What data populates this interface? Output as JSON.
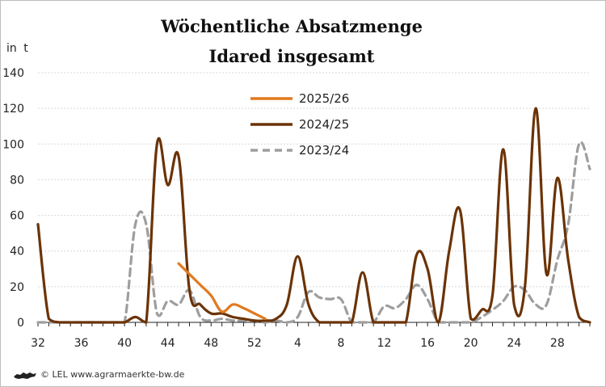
{
  "chart_data": {
    "type": "line",
    "title": "Wöchentliche Absatzmenge",
    "subtitle": "Idared insgesamt",
    "ylabel": "in  t",
    "xlabel": "",
    "ylim": [
      0,
      140
    ],
    "yticks": [
      0,
      20,
      40,
      60,
      80,
      100,
      120,
      140
    ],
    "grid": "horizontal dashed",
    "legend_position": "top-center",
    "x_weeks": [
      "32",
      "33",
      "34",
      "35",
      "36",
      "37",
      "38",
      "39",
      "40",
      "41",
      "42",
      "43",
      "44",
      "45",
      "46",
      "47",
      "48",
      "49",
      "50",
      "51",
      "52",
      "1",
      "2",
      "3",
      "4",
      "5",
      "6",
      "7",
      "8",
      "9",
      "10",
      "11",
      "12",
      "13",
      "14",
      "15",
      "16",
      "17",
      "18",
      "19",
      "20",
      "21",
      "22",
      "23",
      "24",
      "25",
      "26",
      "27",
      "28",
      "29",
      "30",
      "31"
    ],
    "xtick_labels": [
      "32",
      "36",
      "40",
      "44",
      "48",
      "52",
      "4",
      "8",
      "12",
      "16",
      "20",
      "24",
      "28"
    ],
    "series": [
      {
        "name": "2025/26",
        "color": "#e07a1f",
        "style": "solid",
        "start_index": 13,
        "values": [
          33,
          27,
          21,
          15,
          6,
          10,
          8,
          5,
          2
        ]
      },
      {
        "name": "2024/25",
        "color": "#6b3306",
        "style": "solid",
        "start_index": 0,
        "values": [
          55,
          2,
          0,
          0,
          0,
          0,
          0,
          0,
          0,
          3,
          0,
          100,
          77,
          93,
          18,
          10,
          5,
          5,
          3,
          2,
          1,
          1,
          2,
          10,
          37,
          10,
          0,
          0,
          0,
          0,
          28,
          0,
          0,
          0,
          0,
          38,
          30,
          0,
          40,
          63,
          2,
          7,
          15,
          97,
          10,
          20,
          120,
          27,
          81,
          35,
          3,
          0
        ]
      },
      {
        "name": "2023/24",
        "color": "#9e9e9e",
        "style": "dashed",
        "start_index": 0,
        "values": [
          0,
          0,
          0,
          0,
          0,
          0,
          0,
          0,
          0,
          55,
          55,
          5,
          12,
          10,
          18,
          3,
          1,
          2,
          1,
          1,
          1,
          0,
          1,
          0,
          3,
          17,
          14,
          13,
          13,
          0,
          0,
          0,
          9,
          8,
          13,
          21,
          13,
          0,
          0,
          0,
          0,
          3,
          7,
          12,
          20,
          18,
          10,
          10,
          35,
          55,
          100,
          86
        ]
      }
    ]
  },
  "footer": {
    "text": "© LEL www.agrarmaerkte-bw.de",
    "logo_icon": "lion-emblem-icon"
  }
}
